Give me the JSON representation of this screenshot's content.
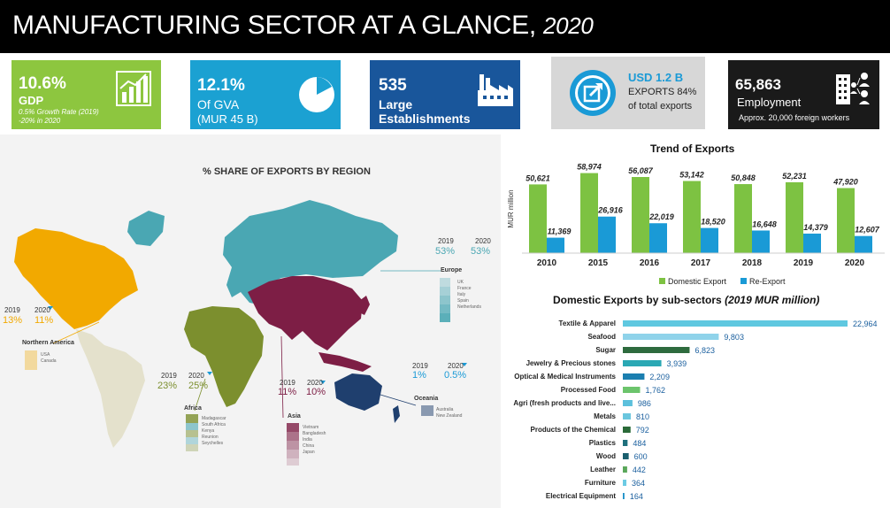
{
  "header": {
    "title": "MANUFACTURING SECTOR AT A GLANCE,",
    "year": "2020"
  },
  "kpis": {
    "gdp": {
      "value": "10.6%",
      "label": "GDP",
      "note1": "0.5% Growth Rate (2019)",
      "note2": "-20% in 2020",
      "color": "#8dc63f"
    },
    "gva": {
      "value": "12.1%",
      "label": "Of GVA",
      "sub": "(MUR 45 B)",
      "color": "#1ba1d2"
    },
    "est": {
      "value": "535",
      "label1": "Large",
      "label2": "Establishments",
      "color": "#19569b"
    },
    "exp": {
      "value": "USD 1.2 B",
      "line1": "EXPORTS 84%",
      "line2": "of total exports",
      "color": "#d7d7d7"
    },
    "emp": {
      "value": "65,863",
      "label": "Employment",
      "note": "Approx. 20,000 foreign workers",
      "color": "#1a1a1a"
    }
  },
  "map": {
    "title": "% SHARE OF EXPORTS BY REGION",
    "regions": [
      {
        "name": "Europe",
        "y2019": "53%",
        "y2020": "53%",
        "countries": [
          "UK",
          "France",
          "Italy",
          "Spain",
          "Netherlands"
        ],
        "color": "#4aa7b3"
      },
      {
        "name": "Northern America",
        "y2019": "13%",
        "y2020": "11%",
        "countries": [
          "USA",
          "Canada"
        ],
        "color": "#f2a900"
      },
      {
        "name": "Africa",
        "y2019": "23%",
        "y2020": "25%",
        "countries": [
          "Madagascar",
          "South Africa",
          "Kenya",
          "Reunion",
          "Seychelles"
        ],
        "color": "#7c8f2e"
      },
      {
        "name": "Asia",
        "y2019": "11%",
        "y2020": "10%",
        "countries": [
          "Vietnam",
          "Bangladesh",
          "India",
          "China",
          "Japan"
        ],
        "color": "#7d1e45"
      },
      {
        "name": "Oceania",
        "y2019": "1%",
        "y2020": "0.5%",
        "countries": [
          "Australia",
          "New Zealand"
        ],
        "color": "#1f3f6e"
      }
    ],
    "label2019": "2019",
    "label2020": "2020"
  },
  "chart_data": [
    {
      "type": "bar",
      "title": "Trend of Exports",
      "ylabel": "MUR million",
      "categories": [
        "2010",
        "2015",
        "2016",
        "2017",
        "2018",
        "2019",
        "2020"
      ],
      "series": [
        {
          "name": "Domestic Export",
          "values": [
            50621,
            58974,
            56087,
            53142,
            50848,
            52231,
            47920
          ],
          "labels": [
            "50,621",
            "58,974",
            "56,087",
            "53,142",
            "50,848",
            "52,231",
            "47,920"
          ],
          "color": "#7dc242"
        },
        {
          "name": "Re-Export",
          "values": [
            11369,
            26916,
            22019,
            18520,
            16648,
            14379,
            12607
          ],
          "labels": [
            "11,369",
            "26,916",
            "22,019",
            "18,520",
            "16,648",
            "14,379",
            "12,607"
          ],
          "color": "#1a9ad6"
        }
      ],
      "legend": "bottom"
    },
    {
      "type": "bar",
      "orientation": "horizontal",
      "title": "Domestic Exports by sub-sectors",
      "title_note": "(2019 MUR million)",
      "categories": [
        "Textile & Apparel",
        "Seafood",
        "Sugar",
        "Jewelry & Precious stones",
        "Optical & Medical Instruments",
        "Processed Food",
        "Agri (fresh products and live...",
        "Metals",
        "Products of the Chemical",
        "Plastics",
        "Wood",
        "Leather",
        "Furniture",
        "Electrical Equipment"
      ],
      "values": [
        22964,
        9803,
        6823,
        3939,
        2209,
        1762,
        986,
        810,
        792,
        484,
        600,
        442,
        364,
        164
      ],
      "labels": [
        "22,964",
        "9,803",
        "6,823",
        "3,939",
        "2,209",
        "1,762",
        "986",
        "810",
        "792",
        "484",
        "600",
        "442",
        "364",
        "164"
      ],
      "colors": [
        "#5fc8e0",
        "#8fd3ea",
        "#2e6b3e",
        "#2aa8b4",
        "#1b7fb0",
        "#6cc46c",
        "#5cc0dc",
        "#6ac6de",
        "#2a6a38",
        "#1e6f7c",
        "#1a5f6e",
        "#5aa75a",
        "#6ccbe4",
        "#1a8fc8"
      ]
    }
  ]
}
